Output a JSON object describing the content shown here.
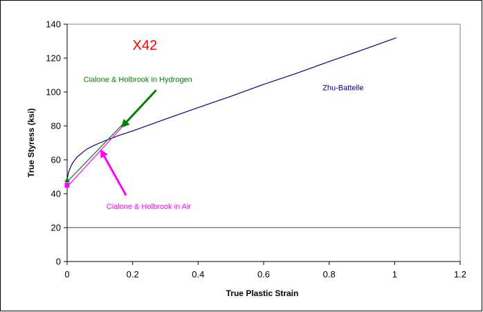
{
  "chart_data": {
    "type": "line",
    "title": "X42",
    "xlabel": "True Plastic Strain",
    "ylabel": "True Styress (ksi)",
    "xlim": [
      0,
      1.2
    ],
    "ylim": [
      0,
      140
    ],
    "x_ticks": [
      "0",
      "0.2",
      "0.4",
      "0.6",
      "0.8",
      "1",
      "1.2"
    ],
    "y_ticks": [
      "0",
      "20",
      "40",
      "60",
      "80",
      "100",
      "120",
      "140"
    ],
    "gridlines_y": [
      20
    ],
    "series": [
      {
        "name": "Zhu-Battelle",
        "color": "#000080",
        "x": [
          0,
          0.002,
          0.005,
          0.01,
          0.015,
          0.02,
          0.03,
          0.045,
          0.06,
          0.08,
          0.1,
          0.13,
          0.16,
          0.2,
          0.3,
          0.4,
          0.5,
          0.6,
          0.7,
          0.8,
          0.9,
          1.005
        ],
        "y": [
          48,
          50.5,
          53,
          55.5,
          57.5,
          59,
          61.5,
          64,
          66.3,
          68.3,
          70,
          72.3,
          74.5,
          77,
          84,
          90.8,
          97.5,
          104.5,
          111,
          118,
          124.7,
          132
        ]
      },
      {
        "name": "Cialone & Holbrook in Hydrogen",
        "color": "#008000",
        "x": [
          0,
          0.175
        ],
        "y": [
          47,
          82
        ]
      },
      {
        "name": "Cialone & Holbrook in Air",
        "color": "#FF00FF",
        "x": [
          0,
          0.19
        ],
        "y": [
          44,
          84
        ]
      }
    ],
    "markers": [
      {
        "series": "Cialone & Holbrook in Air",
        "x": 0,
        "y": 45,
        "shape": "square",
        "color": "#FF00FF"
      },
      {
        "series": "Cialone & Holbrook in Hydrogen",
        "x": 0,
        "y": 48,
        "shape": "triangle",
        "color": "#008000"
      }
    ],
    "annotations": [
      {
        "text": "Zhu-Battelle",
        "color": "#000080",
        "x": 0.78,
        "y": 101
      },
      {
        "text": "Cialone & Holbrook in Hydrogen",
        "color": "#008000",
        "x": 0.05,
        "y": 106,
        "arrow_to": [
          0.17,
          80
        ]
      },
      {
        "text": "Cialone & Holbrook in Air",
        "color": "#FF00FF",
        "x": 0.12,
        "y": 31,
        "arrow_from": [
          0.18,
          39
        ],
        "arrow_to": [
          0.105,
          65
        ]
      },
      {
        "text": "X42",
        "color": "#FF0000",
        "x": 0.2,
        "y": 125,
        "size": "large"
      }
    ]
  }
}
